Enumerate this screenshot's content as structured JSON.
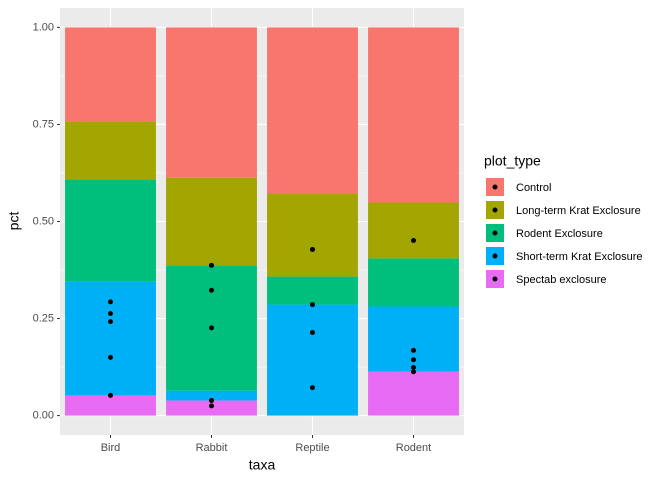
{
  "chart_data": {
    "type": "bar",
    "stacked": true,
    "points": true,
    "x_label": "taxa",
    "y_label": "pct",
    "legend_title": "plot_type",
    "legend": "right",
    "categories": [
      "Bird",
      "Rabbit",
      "Reptile",
      "Rodent"
    ],
    "series": [
      {
        "name": "Control",
        "color": "#F8766D",
        "values": [
          0.242,
          0.387,
          0.428,
          0.451
        ]
      },
      {
        "name": "Long-term Krat Exclosure",
        "color": "#A3A500",
        "values": [
          0.15,
          0.226,
          0.214,
          0.144
        ]
      },
      {
        "name": "Rodent Exclosure",
        "color": "#00BF7D",
        "values": [
          0.263,
          0.323,
          0.072,
          0.124
        ]
      },
      {
        "name": "Short-term Krat Exclosure",
        "color": "#00B0F6",
        "values": [
          0.293,
          0.025,
          0.286,
          0.168
        ]
      },
      {
        "name": "Spectab exclosure",
        "color": "#E76BF3",
        "values": [
          0.052,
          0.039,
          null,
          0.113
        ]
      }
    ],
    "ylim": [
      -0.05,
      1.05
    ],
    "yticks": [
      {
        "value": 0,
        "label": "0.00"
      },
      {
        "value": 0.25,
        "label": "0.25"
      },
      {
        "value": 0.5,
        "label": "0.50"
      },
      {
        "value": 0.75,
        "label": "0.75"
      },
      {
        "value": 1,
        "label": "1.00"
      }
    ],
    "grid": true
  }
}
